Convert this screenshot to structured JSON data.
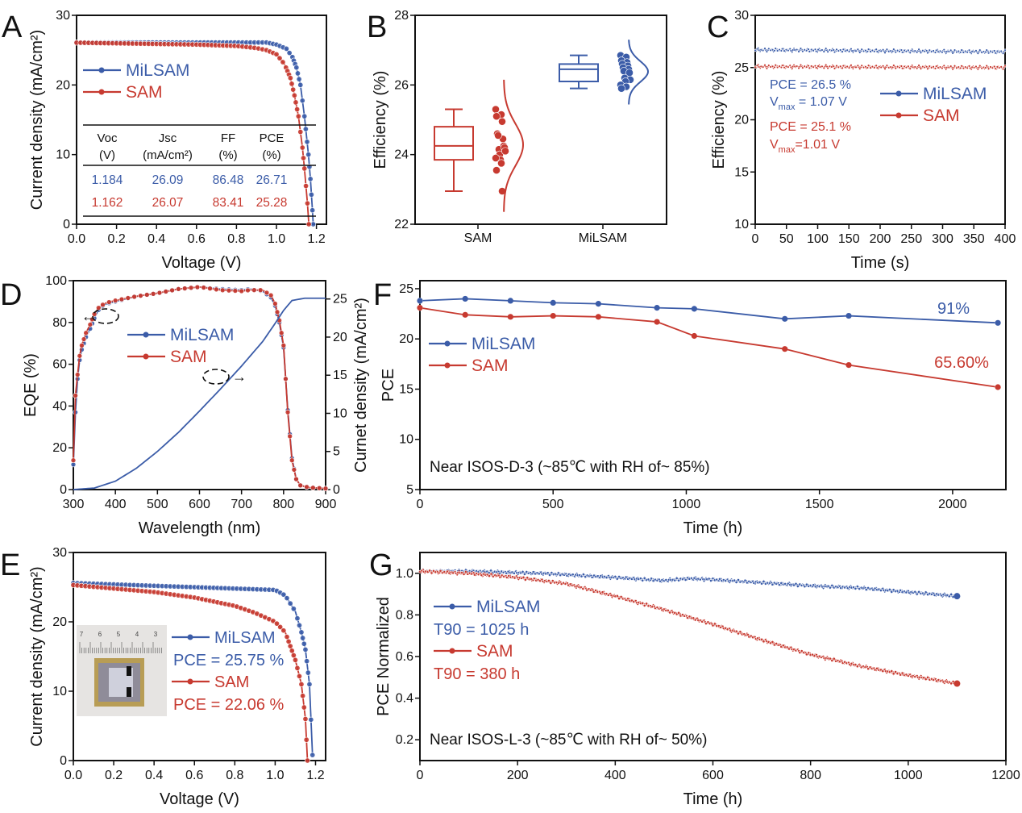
{
  "colors": {
    "milsam": "#3b5ca8",
    "sam": "#c73a30",
    "axis": "#111111"
  },
  "chart_data": [
    {
      "panel_label": "A",
      "type": "line",
      "xlabel": "Voltage (V)",
      "ylabel": "Current density (mA/cm²)",
      "xlim": [
        0,
        1.25
      ],
      "ylim": [
        0,
        30
      ],
      "xticks": [
        "0.0",
        "0.2",
        "0.4",
        "0.6",
        "0.8",
        "1.0",
        "1.2"
      ],
      "yticks": [
        "0",
        "10",
        "20",
        "30"
      ],
      "series": [
        {
          "name": "MiLSAM",
          "color_key": "milsam",
          "points": [
            [
              0,
              26.1
            ],
            [
              0.2,
              26.1
            ],
            [
              0.4,
              26.1
            ],
            [
              0.6,
              26.1
            ],
            [
              0.8,
              26.1
            ],
            [
              0.95,
              26.1
            ],
            [
              1.0,
              25.8
            ],
            [
              1.05,
              25.2
            ],
            [
              1.08,
              24.0
            ],
            [
              1.1,
              22.5
            ],
            [
              1.12,
              20.0
            ],
            [
              1.14,
              15.5
            ],
            [
              1.16,
              10.0
            ],
            [
              1.17,
              6.5
            ],
            [
              1.18,
              2.0
            ],
            [
              1.184,
              0
            ]
          ]
        },
        {
          "name": "SAM",
          "color_key": "sam",
          "points": [
            [
              0,
              26.07
            ],
            [
              0.6,
              25.8
            ],
            [
              0.8,
              25.6
            ],
            [
              0.9,
              25.3
            ],
            [
              0.95,
              25.0
            ],
            [
              1.0,
              24.4
            ],
            [
              1.04,
              23.0
            ],
            [
              1.07,
              21.0
            ],
            [
              1.09,
              18.5
            ],
            [
              1.11,
              15.5
            ],
            [
              1.13,
              11.0
            ],
            [
              1.14,
              8.0
            ],
            [
              1.155,
              3.0
            ],
            [
              1.162,
              0
            ]
          ]
        }
      ],
      "table": {
        "headers": [
          [
            "Voc",
            "(V)"
          ],
          [
            "Jsc",
            "(mA/cm²)"
          ],
          [
            "FF",
            "(%)"
          ],
          [
            "PCE",
            "(%)"
          ]
        ],
        "rows": [
          {
            "series": "MiLSAM",
            "values": [
              "1.184",
              "26.09",
              "86.48",
              "26.71"
            ]
          },
          {
            "series": "SAM",
            "values": [
              "1.162",
              "26.07",
              "83.41",
              "25.28"
            ]
          }
        ]
      }
    },
    {
      "panel_label": "B",
      "type": "box",
      "xlabel": "",
      "ylabel": "Efficiency (%)",
      "ylim": [
        22,
        28
      ],
      "yticks": [
        "22",
        "24",
        "26",
        "28"
      ],
      "categories": [
        "SAM",
        "MiLSAM"
      ],
      "boxes": [
        {
          "name": "SAM",
          "color_key": "sam",
          "min": 22.95,
          "q1": 23.85,
          "median": 24.25,
          "q3": 24.8,
          "max": 25.3,
          "points": [
            25.3,
            25.15,
            25.1,
            24.95,
            24.6,
            24.45,
            24.55,
            24.25,
            24.15,
            24.2,
            24.0,
            24.1,
            23.85,
            23.9,
            23.75,
            23.55,
            22.95
          ]
        },
        {
          "name": "MiLSAM",
          "color_key": "milsam",
          "min": 25.9,
          "q1": 26.1,
          "median": 26.45,
          "q3": 26.6,
          "max": 26.85,
          "points": [
            26.85,
            26.8,
            26.7,
            26.65,
            26.6,
            26.55,
            26.5,
            26.45,
            26.4,
            26.35,
            26.2,
            26.15,
            26.1,
            26.0,
            25.95,
            25.9
          ]
        }
      ]
    },
    {
      "panel_label": "C",
      "type": "line",
      "xlabel": "Time (s)",
      "ylabel": "Efficiency (%)",
      "xlim": [
        0,
        400
      ],
      "ylim": [
        10,
        30
      ],
      "xticks": [
        "0",
        "50",
        "100",
        "150",
        "200",
        "250",
        "300",
        "350",
        "400"
      ],
      "yticks": [
        "10",
        "15",
        "20",
        "25",
        "30"
      ],
      "series": [
        {
          "name": "MiLSAM",
          "color_key": "milsam",
          "points": [
            [
              0,
              26.7
            ],
            [
              200,
              26.6
            ],
            [
              400,
              26.5
            ]
          ]
        },
        {
          "name": "SAM",
          "color_key": "sam",
          "points": [
            [
              0,
              25.1
            ],
            [
              200,
              25.05
            ],
            [
              400,
              25.0
            ]
          ]
        }
      ],
      "annotations": [
        {
          "color_key": "milsam",
          "main": "PCE = 26.5 %"
        },
        {
          "color_key": "milsam",
          "main": "V",
          "sub": "max",
          "tail": " = 1.07 V"
        },
        {
          "color_key": "sam",
          "main": "PCE = 25.1 %"
        },
        {
          "color_key": "sam",
          "main": "V",
          "sub": "max",
          "tail": "=1.01 V"
        }
      ]
    },
    {
      "panel_label": "D",
      "type": "line",
      "xlabel": "Wavelength (nm)",
      "ylabel": "EQE (%)",
      "y2label": "Curnet density (mA/cm²)",
      "xlim": [
        300,
        900
      ],
      "ylim": [
        0,
        100
      ],
      "y2lim": [
        0,
        27.4
      ],
      "xticks": [
        "300",
        "400",
        "500",
        "600",
        "700",
        "800",
        "900"
      ],
      "yticks": [
        "0",
        "20",
        "40",
        "60",
        "80",
        "100"
      ],
      "y2ticks": [
        "0",
        "5",
        "10",
        "15",
        "20",
        "25"
      ],
      "series": [
        {
          "name": "MiLSAM",
          "color_key": "milsam",
          "axis": "left",
          "points": [
            [
              300,
              12
            ],
            [
              305,
              37
            ],
            [
              310,
              53
            ],
            [
              315,
              62
            ],
            [
              320,
              67
            ],
            [
              330,
              73
            ],
            [
              340,
              77
            ],
            [
              350,
              82
            ],
            [
              360,
              86
            ],
            [
              370,
              88
            ],
            [
              380,
              89
            ],
            [
              400,
              90
            ],
            [
              450,
              92.5
            ],
            [
              500,
              94
            ],
            [
              550,
              96
            ],
            [
              600,
              97
            ],
            [
              650,
              96
            ],
            [
              700,
              95.5
            ],
            [
              720,
              96
            ],
            [
              750,
              95
            ],
            [
              770,
              92
            ],
            [
              780,
              88
            ],
            [
              790,
              80
            ],
            [
              800,
              68
            ],
            [
              810,
              38
            ],
            [
              820,
              15
            ],
            [
              830,
              5
            ],
            [
              840,
              2
            ],
            [
              860,
              1
            ],
            [
              900,
              0.5
            ]
          ]
        },
        {
          "name": "SAM",
          "color_key": "sam",
          "axis": "left",
          "points": [
            [
              300,
              14
            ],
            [
              305,
              45
            ],
            [
              310,
              55
            ],
            [
              315,
              64
            ],
            [
              320,
              69
            ],
            [
              330,
              75
            ],
            [
              340,
              79
            ],
            [
              350,
              84
            ],
            [
              360,
              87
            ],
            [
              370,
              88.5
            ],
            [
              380,
              89.5
            ],
            [
              400,
              90.5
            ],
            [
              450,
              92.5
            ],
            [
              500,
              94
            ],
            [
              550,
              96
            ],
            [
              600,
              97
            ],
            [
              650,
              95.5
            ],
            [
              700,
              95
            ],
            [
              720,
              95.5
            ],
            [
              750,
              95.5
            ],
            [
              770,
              93
            ],
            [
              780,
              89
            ],
            [
              790,
              81
            ],
            [
              800,
              69
            ],
            [
              810,
              37
            ],
            [
              820,
              14
            ],
            [
              830,
              5
            ],
            [
              840,
              2
            ],
            [
              860,
              1
            ],
            [
              900,
              0.5
            ]
          ]
        },
        {
          "name": "",
          "color_key": "milsam",
          "axis": "right",
          "markers": false,
          "points": [
            [
              300,
              0
            ],
            [
              350,
              0.2
            ],
            [
              400,
              1.1
            ],
            [
              450,
              2.8
            ],
            [
              500,
              5.0
            ],
            [
              550,
              7.5
            ],
            [
              600,
              10.3
            ],
            [
              650,
              13.2
            ],
            [
              700,
              16.2
            ],
            [
              750,
              19.4
            ],
            [
              780,
              21.8
            ],
            [
              800,
              23.5
            ],
            [
              820,
              24.8
            ],
            [
              850,
              25.1
            ],
            [
              900,
              25.1
            ]
          ]
        }
      ],
      "arrows": [
        "←",
        "→"
      ]
    },
    {
      "panel_label": "F",
      "type": "line",
      "xlabel": "Time (h)",
      "ylabel": "PCE",
      "xlim": [
        0,
        2200
      ],
      "ylim": [
        5,
        25.8
      ],
      "xticks": [
        "0",
        "500",
        "1000",
        "1500",
        "2000"
      ],
      "yticks": [
        "5",
        "10",
        "15",
        "20",
        "25"
      ],
      "series": [
        {
          "name": "MiLSAM",
          "color_key": "milsam",
          "points": [
            [
              0,
              23.8
            ],
            [
              170,
              24.0
            ],
            [
              340,
              23.8
            ],
            [
              500,
              23.6
            ],
            [
              670,
              23.5
            ],
            [
              890,
              23.1
            ],
            [
              1030,
              23.0
            ],
            [
              1370,
              22.0
            ],
            [
              1610,
              22.3
            ],
            [
              2170,
              21.6
            ]
          ]
        },
        {
          "name": "SAM",
          "color_key": "sam",
          "points": [
            [
              0,
              23.1
            ],
            [
              170,
              22.4
            ],
            [
              340,
              22.2
            ],
            [
              500,
              22.3
            ],
            [
              670,
              22.2
            ],
            [
              890,
              21.7
            ],
            [
              1030,
              20.3
            ],
            [
              1370,
              19.0
            ],
            [
              1610,
              17.4
            ],
            [
              2170,
              15.2
            ]
          ]
        }
      ],
      "retention": {
        "MiLSAM": "91%",
        "SAM": "65.60%"
      },
      "condition": "Near ISOS-D-3 (~85℃ with RH of~ 85%)"
    },
    {
      "panel_label": "E",
      "type": "line",
      "xlabel": "Voltage (V)",
      "ylabel": "Current density (mA/cm²)",
      "xlim": [
        0,
        1.25
      ],
      "ylim": [
        0,
        30
      ],
      "xticks": [
        "0.0",
        "0.2",
        "0.4",
        "0.6",
        "0.8",
        "1.0",
        "1.2"
      ],
      "yticks": [
        "0",
        "10",
        "20",
        "30"
      ],
      "series": [
        {
          "name": "MiLSAM",
          "color_key": "milsam",
          "pce": "PCE = 25.75 %",
          "points": [
            [
              0,
              25.6
            ],
            [
              0.2,
              25.4
            ],
            [
              0.4,
              25.2
            ],
            [
              0.6,
              25.0
            ],
            [
              0.8,
              24.8
            ],
            [
              1.0,
              24.6
            ],
            [
              1.05,
              23.8
            ],
            [
              1.1,
              21.5
            ],
            [
              1.13,
              18.5
            ],
            [
              1.15,
              16.0
            ],
            [
              1.17,
              11.0
            ],
            [
              1.185,
              0.8
            ]
          ]
        },
        {
          "name": "SAM",
          "color_key": "sam",
          "pce": "PCE = 22.06 %",
          "points": [
            [
              0,
              25.3
            ],
            [
              0.2,
              24.8
            ],
            [
              0.4,
              24.3
            ],
            [
              0.6,
              23.5
            ],
            [
              0.8,
              22.3
            ],
            [
              0.9,
              21.3
            ],
            [
              1.0,
              20.0
            ],
            [
              1.05,
              18.5
            ],
            [
              1.1,
              14.5
            ],
            [
              1.13,
              11.0
            ],
            [
              1.15,
              6.0
            ],
            [
              1.16,
              0
            ]
          ]
        }
      ],
      "inset_ruler_labels": [
        "7",
        "6",
        "5",
        "4",
        "3"
      ]
    },
    {
      "panel_label": "G",
      "type": "line",
      "xlabel": "Time (h)",
      "ylabel": "PCE Normalized",
      "xlim": [
        0,
        1200
      ],
      "ylim": [
        0.1,
        1.1
      ],
      "xticks": [
        "0",
        "200",
        "400",
        "600",
        "800",
        "1000",
        "1200"
      ],
      "yticks": [
        "0.2",
        "0.4",
        "0.6",
        "0.8",
        "1.0"
      ],
      "series": [
        {
          "name": "MiLSAM",
          "color_key": "milsam",
          "t90": "T90 = 1025 h",
          "points": [
            [
              0,
              1.01
            ],
            [
              100,
              1.01
            ],
            [
              250,
              1.0
            ],
            [
              400,
              0.98
            ],
            [
              500,
              0.965
            ],
            [
              550,
              0.975
            ],
            [
              600,
              0.97
            ],
            [
              700,
              0.955
            ],
            [
              800,
              0.94
            ],
            [
              900,
              0.93
            ],
            [
              1000,
              0.91
            ],
            [
              1100,
              0.89
            ]
          ]
        },
        {
          "name": "SAM",
          "color_key": "sam",
          "t90": "T90 = 380 h",
          "points": [
            [
              0,
              1.01
            ],
            [
              100,
              1.0
            ],
            [
              200,
              0.98
            ],
            [
              300,
              0.95
            ],
            [
              400,
              0.89
            ],
            [
              500,
              0.825
            ],
            [
              600,
              0.755
            ],
            [
              700,
              0.68
            ],
            [
              800,
              0.61
            ],
            [
              900,
              0.555
            ],
            [
              1000,
              0.51
            ],
            [
              1100,
              0.47
            ]
          ]
        }
      ],
      "condition": "Near ISOS-L-3 (~85℃ with RH of~ 50%)"
    }
  ]
}
